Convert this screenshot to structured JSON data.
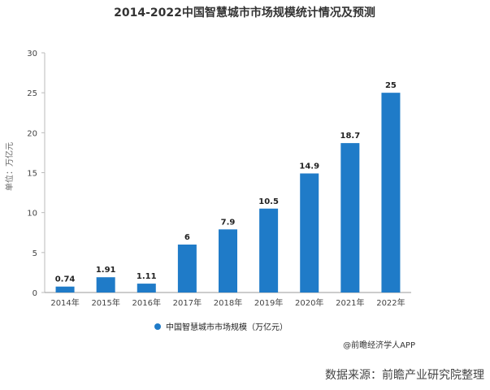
{
  "chart_data": {
    "type": "bar",
    "title": "2014-2022中国智慧城市市场规模统计情况及预测",
    "ylabel": "单位：万亿元",
    "categories": [
      "2014年",
      "2015年",
      "2016年",
      "2017年",
      "2018年",
      "2019年",
      "2020年",
      "2021年",
      "2022年"
    ],
    "series": [
      {
        "name": "中国智慧城市市场规模（万亿元）",
        "values": [
          0.74,
          1.91,
          1.11,
          6,
          7.9,
          10.5,
          14.9,
          18.7,
          25
        ]
      }
    ],
    "value_labels": [
      "0.74",
      "1.91",
      "1.11",
      "6",
      "7.9",
      "10.5",
      "14.9",
      "18.7",
      "25"
    ],
    "yticks": [
      "0",
      "5",
      "10",
      "15",
      "20",
      "25",
      "30"
    ],
    "ylim": [
      0,
      30
    ],
    "grid": false,
    "legend_position": "bottom-center",
    "bar_color": "#1f7bc8"
  },
  "credit": "@前瞻经济学人APP",
  "source": "数据来源：前瞻产业研究院整理"
}
